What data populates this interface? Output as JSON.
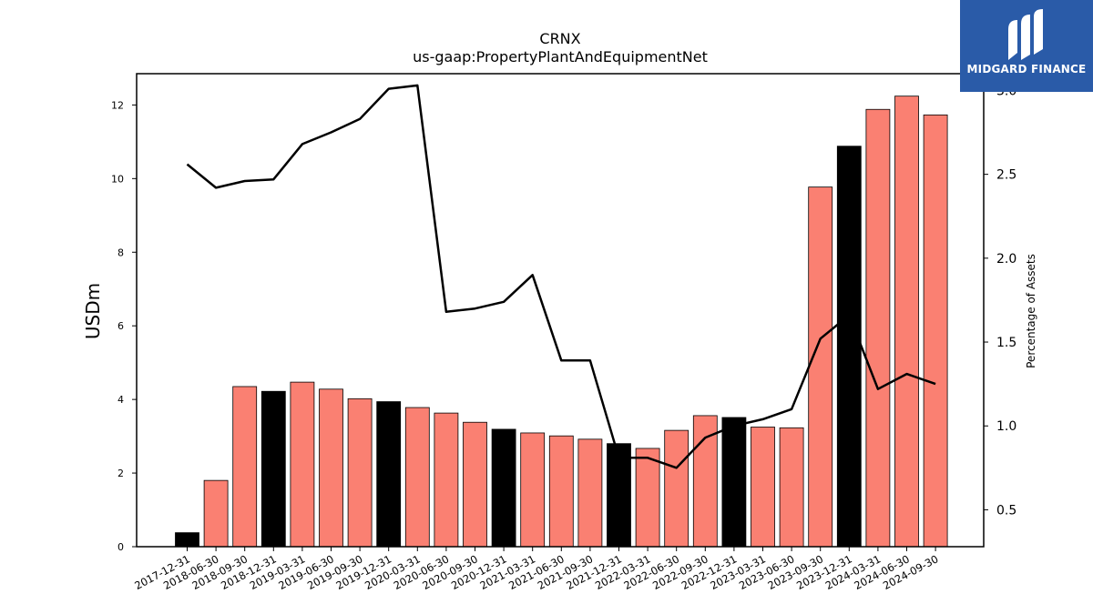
{
  "chart_data": {
    "type": "bar",
    "title": "CRNX",
    "subtitle": "us-gaap:PropertyPlantAndEquipmentNet",
    "ylabel": "USDm",
    "y2label": "Percentage of Assets",
    "ylim": [
      0,
      12.85
    ],
    "y2lim": [
      0.28,
      3.1
    ],
    "yticks": [
      0,
      2,
      4,
      6,
      8,
      10,
      12
    ],
    "y2ticks": [
      "0.5",
      "1.0",
      "1.5",
      "2.0",
      "2.5",
      "3.0"
    ],
    "categories": [
      "2017-12-31",
      "2018-06-30",
      "2018-09-30",
      "2018-12-31",
      "2019-03-31",
      "2019-06-30",
      "2019-09-30",
      "2019-12-31",
      "2020-03-31",
      "2020-06-30",
      "2020-09-30",
      "2020-12-31",
      "2021-03-31",
      "2021-06-30",
      "2021-09-30",
      "2021-12-31",
      "2022-03-31",
      "2022-06-30",
      "2022-09-30",
      "2022-12-31",
      "2023-03-31",
      "2023-06-30",
      "2023-09-30",
      "2023-12-31",
      "2024-03-31",
      "2024-06-30",
      "2024-09-30"
    ],
    "values": [
      0.38,
      1.8,
      4.35,
      4.22,
      4.47,
      4.28,
      4.02,
      3.94,
      3.78,
      3.63,
      3.38,
      3.19,
      3.09,
      3.01,
      2.92,
      2.8,
      2.67,
      3.16,
      3.56,
      3.51,
      3.25,
      3.23,
      9.77,
      10.88,
      11.88,
      12.24,
      11.73
    ],
    "highlight": [
      true,
      false,
      false,
      true,
      false,
      false,
      false,
      true,
      false,
      false,
      false,
      true,
      false,
      false,
      false,
      true,
      false,
      false,
      false,
      true,
      false,
      false,
      false,
      true,
      false,
      false,
      false
    ],
    "line_values": [
      2.56,
      2.42,
      2.46,
      2.47,
      2.68,
      2.75,
      2.83,
      3.01,
      3.03,
      1.68,
      1.7,
      1.74,
      1.9,
      1.39,
      1.39,
      0.81,
      0.81,
      0.75,
      0.93,
      1.0,
      1.04,
      1.1,
      1.52,
      1.66,
      1.22,
      1.31,
      1.25
    ],
    "colors": {
      "bar": "#fa8072",
      "highlight": "#000000",
      "line": "#000000"
    }
  },
  "logo": {
    "text": "MIDGARD FINANCE"
  }
}
